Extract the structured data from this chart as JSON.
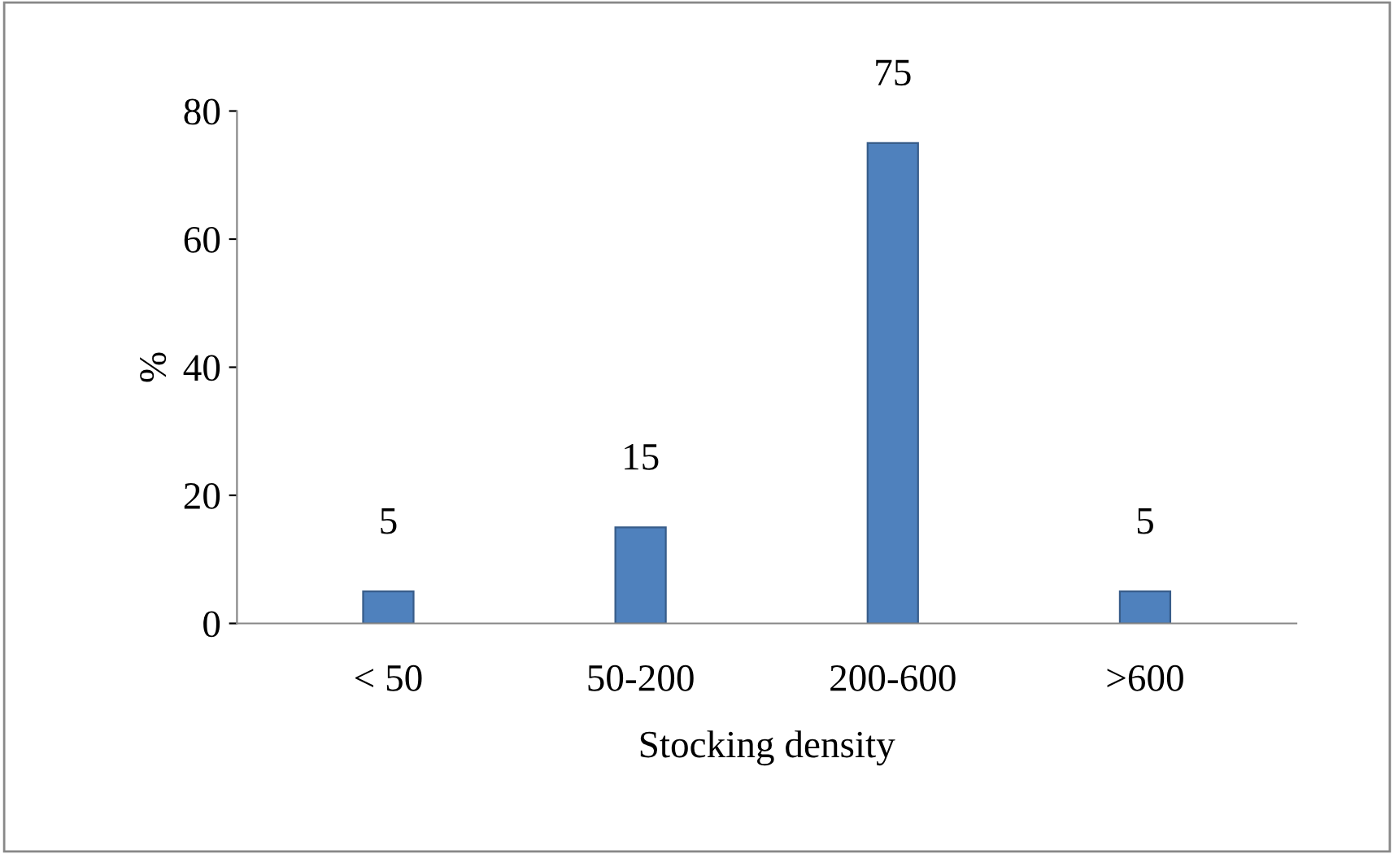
{
  "chart_data": {
    "type": "bar",
    "xlabel": "Stocking density",
    "ylabel": "%",
    "categories": [
      "< 50",
      "50-200",
      "200-600",
      ">600"
    ],
    "values": [
      5,
      15,
      75,
      5
    ],
    "color": "#4f81bd",
    "ylim": [
      0,
      80
    ],
    "yticks": [
      0,
      20,
      40,
      60,
      80
    ],
    "grid": false,
    "data_labels": true
  }
}
